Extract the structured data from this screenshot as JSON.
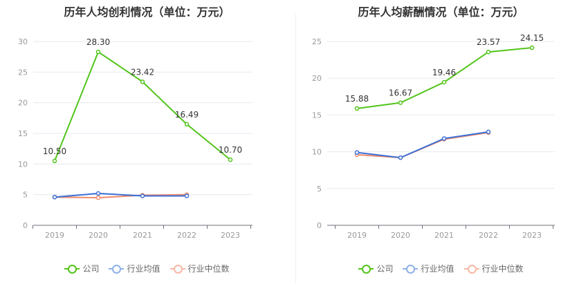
{
  "colors": {
    "company": "#52c41a",
    "industry_avg": "#3b6fd6",
    "industry_median": "#f08a6a",
    "company_legend": "#52c41a",
    "avg_legend": "#8fb0e8",
    "median_legend": "#f5b8a4"
  },
  "legend": {
    "company": "公司",
    "industry_avg": "行业均值",
    "industry_median": "行业中位数"
  },
  "chart_data": [
    {
      "type": "line",
      "title": "历年人均创利情况（单位：万元）",
      "categories": [
        "2019",
        "2020",
        "2021",
        "2022",
        "2023"
      ],
      "ylim": [
        0,
        30
      ],
      "yticks": [
        "0",
        "5",
        "10",
        "15",
        "20",
        "25",
        "30"
      ],
      "grid": true,
      "legend_position": "bottom",
      "series": [
        {
          "name": "公司",
          "values": [
            10.5,
            28.3,
            23.42,
            16.49,
            10.7
          ],
          "labels": [
            "10.50",
            "28.30",
            "23.42",
            "16.49",
            "10.70"
          ]
        },
        {
          "name": "行业均值",
          "values": [
            4.6,
            5.2,
            4.8,
            4.8,
            null
          ]
        },
        {
          "name": "行业中位数",
          "values": [
            4.6,
            4.5,
            4.9,
            5.0,
            null
          ]
        }
      ]
    },
    {
      "type": "line",
      "title": "历年人均薪酬情况（单位：万元）",
      "categories": [
        "2019",
        "2020",
        "2021",
        "2022",
        "2023"
      ],
      "ylim": [
        0,
        25
      ],
      "yticks": [
        "0",
        "5",
        "10",
        "15",
        "20",
        "25"
      ],
      "grid": true,
      "legend_position": "bottom",
      "series": [
        {
          "name": "公司",
          "values": [
            15.88,
            16.67,
            19.46,
            23.57,
            24.15
          ],
          "labels": [
            "15.88",
            "16.67",
            "19.46",
            "23.57",
            "24.15"
          ]
        },
        {
          "name": "行业均值",
          "values": [
            9.9,
            9.2,
            11.8,
            12.7,
            null
          ]
        },
        {
          "name": "行业中位数",
          "values": [
            9.6,
            9.2,
            11.7,
            12.6,
            null
          ]
        }
      ]
    }
  ]
}
